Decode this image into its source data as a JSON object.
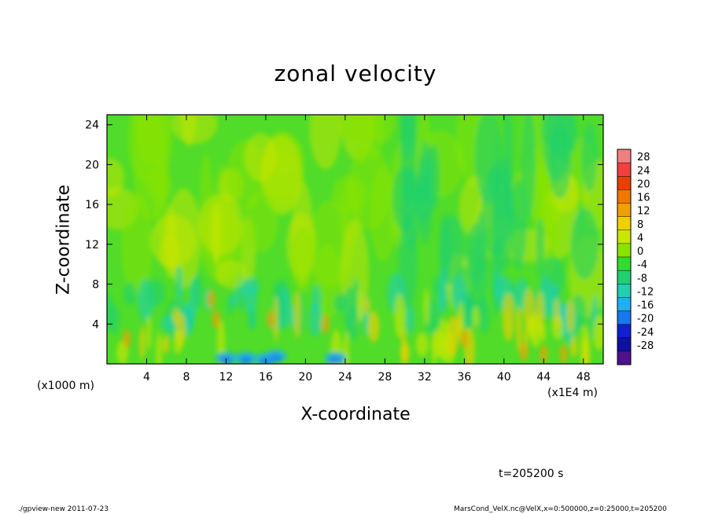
{
  "chart_data": {
    "type": "heatmap",
    "title": "zonal velocity",
    "xlabel": "X-coordinate",
    "ylabel": "Z-coordinate",
    "x_unit": "(x1000 m)",
    "x_unit_secondary": "(x1E4 m)",
    "xlim": [
      0,
      50
    ],
    "ylim": [
      0,
      25
    ],
    "x_ticks": [
      4,
      8,
      12,
      16,
      20,
      24,
      28,
      32,
      36,
      40,
      44,
      48
    ],
    "y_ticks": [
      4,
      8,
      12,
      16,
      20,
      24
    ],
    "colorbar": {
      "labels": [
        28,
        24,
        20,
        16,
        12,
        8,
        4,
        0,
        -4,
        -8,
        -12,
        -16,
        -20,
        -24,
        -28
      ],
      "colors": [
        "#f08080",
        "#f04040",
        "#e84000",
        "#f07800",
        "#f0a000",
        "#f0d000",
        "#c8e600",
        "#88e400",
        "#30dc30",
        "#20d070",
        "#20d0b0",
        "#20b0f0",
        "#1878f0",
        "#1020d0",
        "#1010a0",
        "#501090"
      ]
    },
    "annotation": "t=205200 s"
  },
  "footer": {
    "left": "./gpview-new   2011-07-23",
    "right": "MarsCond_VelX.nc@VelX,x=0:500000,z=0:25000,t=205200"
  }
}
